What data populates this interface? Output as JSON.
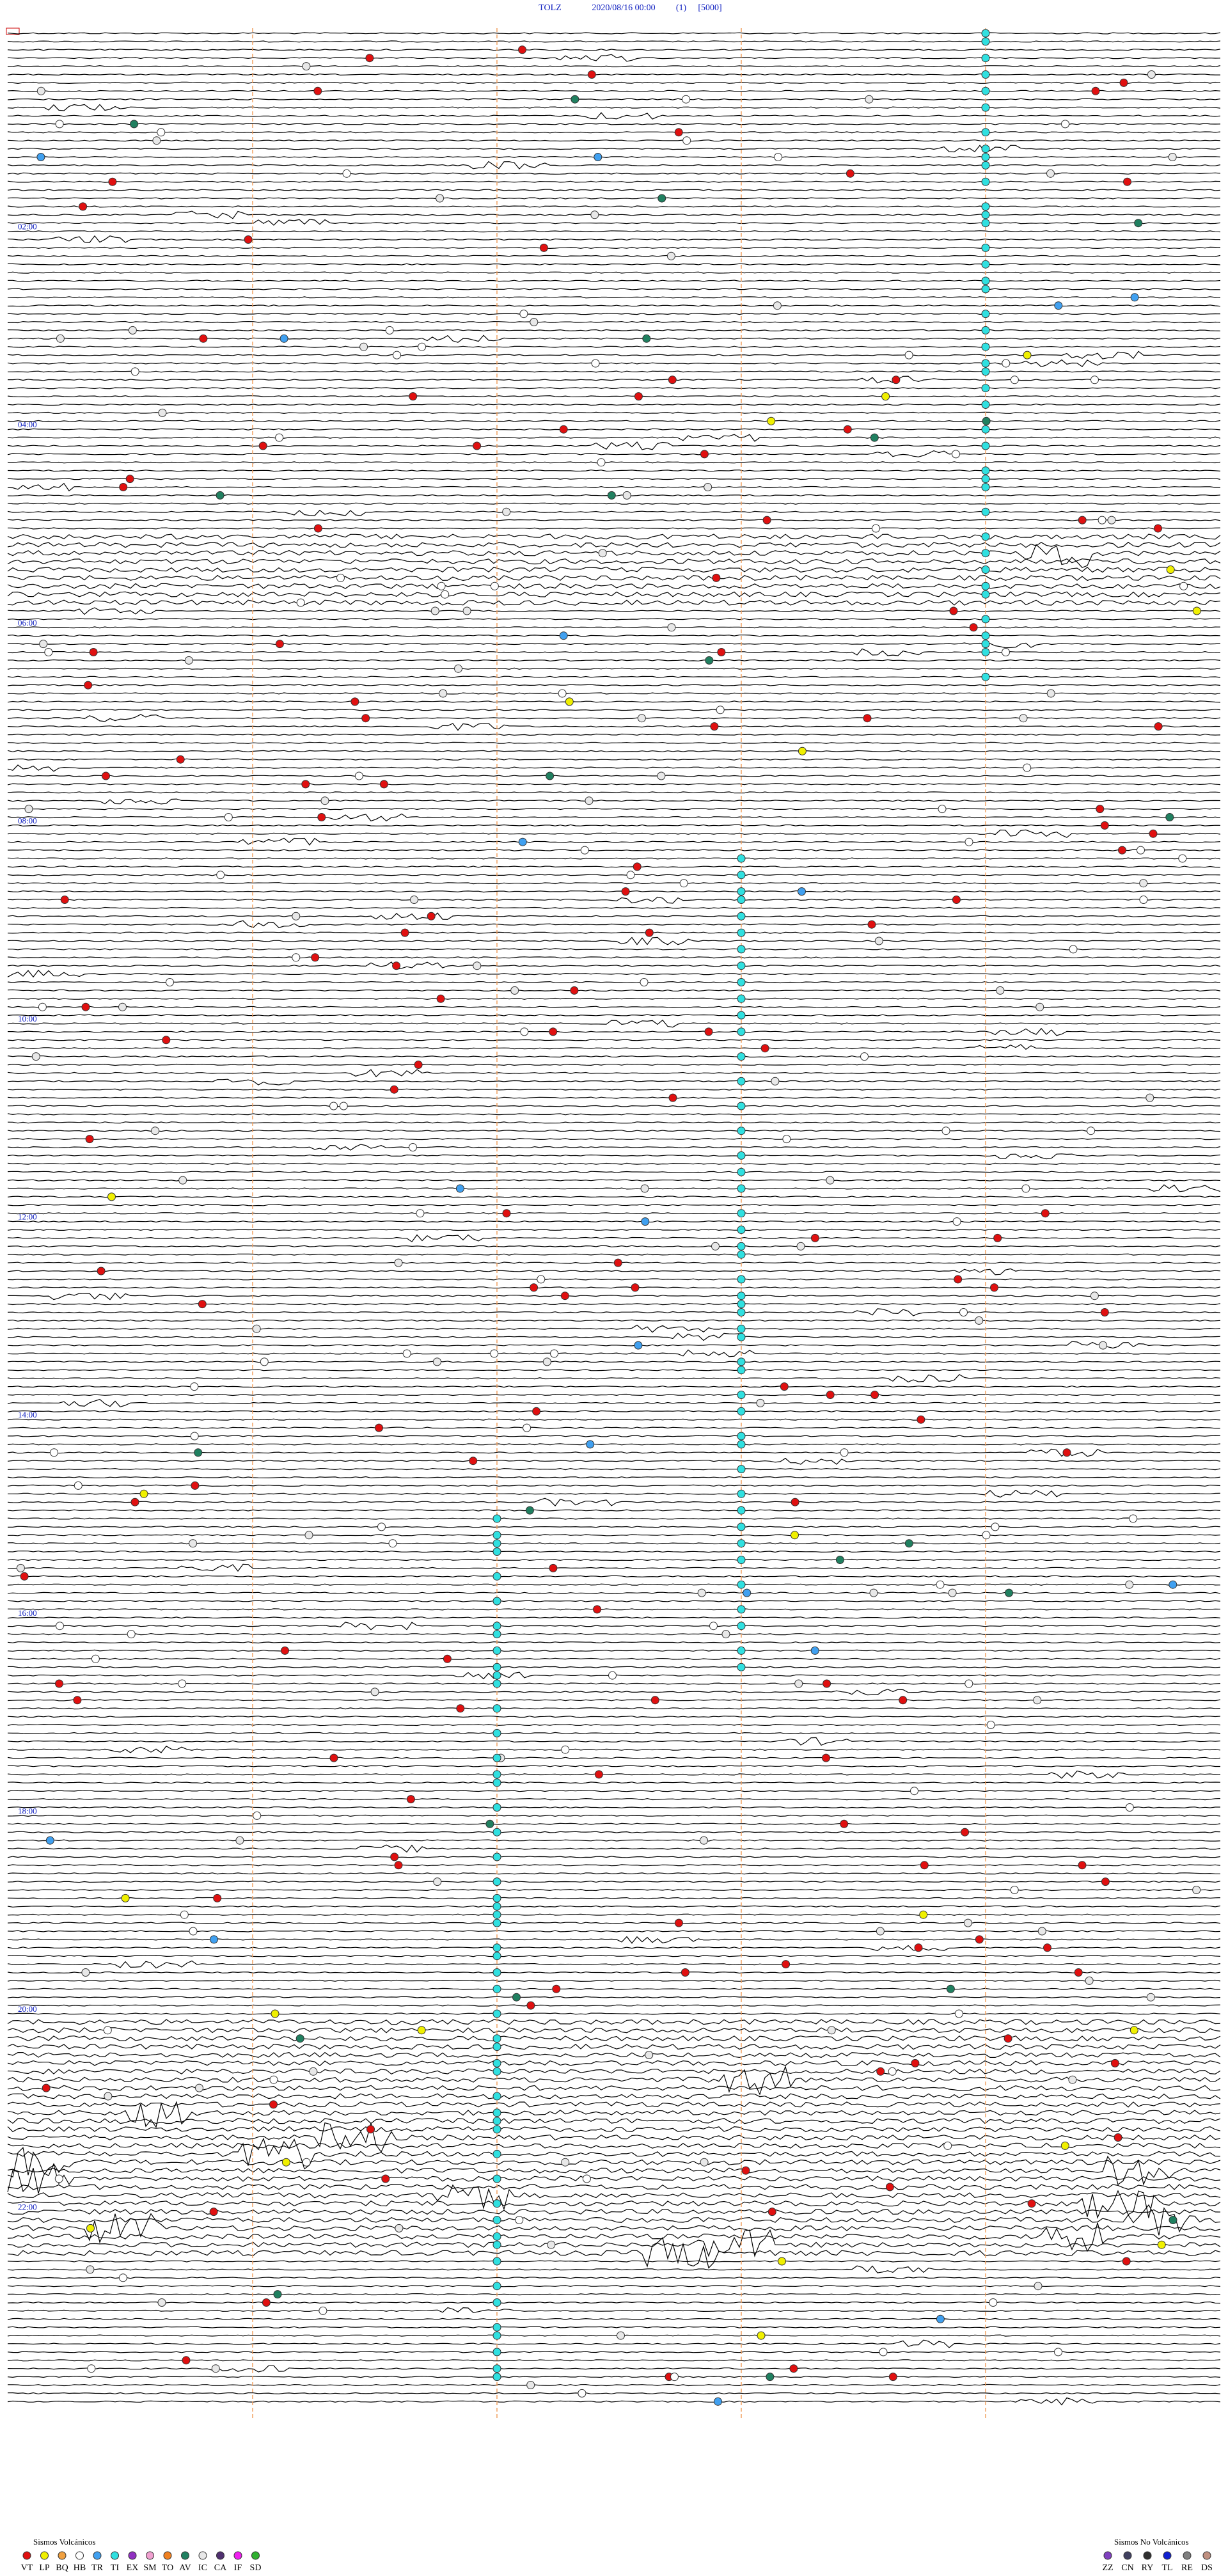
{
  "header": {
    "station": "TOLZ",
    "datetime": "2020/08/16 00:00",
    "channel": "(1)",
    "scale": "[5000]"
  },
  "hours": [
    "02:00",
    "04:00",
    "06:00",
    "08:00",
    "10:00",
    "12:00",
    "14:00",
    "16:00",
    "18:00",
    "20:00",
    "22:00"
  ],
  "legend_volcanic": {
    "title": "Sismos Volcánicos",
    "items": [
      {
        "code": "VT",
        "color": "#e01010"
      },
      {
        "code": "LP",
        "color": "#f0f000"
      },
      {
        "code": "BQ",
        "color": "#f0a040"
      },
      {
        "code": "HB",
        "color": "#ffffff"
      },
      {
        "code": "TR",
        "color": "#40a0f0"
      },
      {
        "code": "TI",
        "color": "#30e0e0"
      },
      {
        "code": "EX",
        "color": "#9030c0"
      },
      {
        "code": "SM",
        "color": "#f0a0d0"
      },
      {
        "code": "TO",
        "color": "#f08020"
      },
      {
        "code": "AV",
        "color": "#208060"
      },
      {
        "code": "IC",
        "color": "#e8e8e8"
      },
      {
        "code": "CA",
        "color": "#503070"
      },
      {
        "code": "IF",
        "color": "#f020f0"
      },
      {
        "code": "SD",
        "color": "#30b030"
      }
    ]
  },
  "legend_nonvolcanic": {
    "title": "Sismos No Volcánicos",
    "items": [
      {
        "code": "ZZ",
        "color": "#8040c0"
      },
      {
        "code": "CN",
        "color": "#404060"
      },
      {
        "code": "RY",
        "color": "#303030"
      },
      {
        "code": "TL",
        "color": "#1020d0"
      },
      {
        "code": "RE",
        "color": "#808080"
      },
      {
        "code": "DS",
        "color": "#c09080"
      }
    ]
  }
}
